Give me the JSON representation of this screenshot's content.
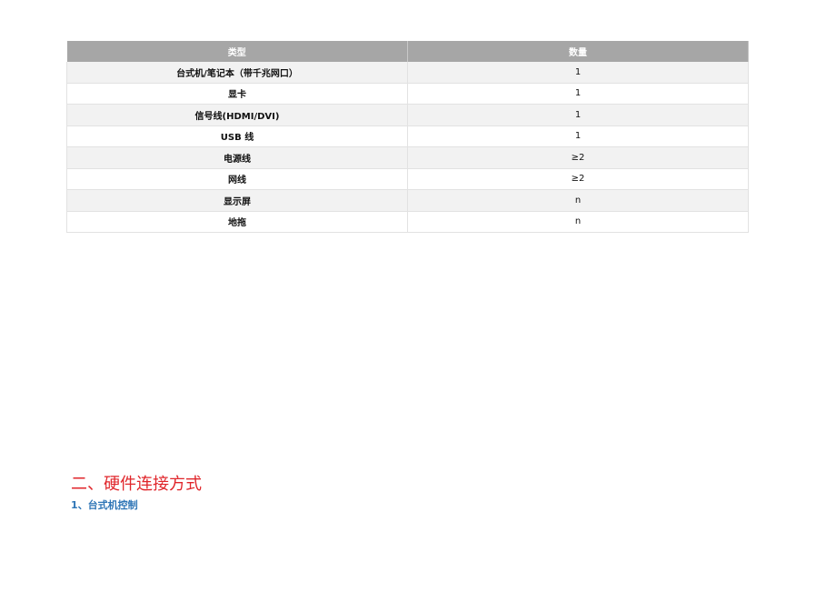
{
  "table": {
    "headers": [
      "类型",
      "数量"
    ],
    "rows": [
      [
        "台式机/笔记本（带千兆网口）",
        "1"
      ],
      [
        "显卡",
        "1"
      ],
      [
        "信号线(HDMI/DVI)",
        "1"
      ],
      [
        "USB 线",
        "1"
      ],
      [
        "电源线",
        "≥2"
      ],
      [
        "网线",
        "≥2"
      ],
      [
        "显示屏",
        "n"
      ],
      [
        "地拖",
        "n"
      ]
    ]
  },
  "section": {
    "heading": "二、硬件连接方式",
    "subheading": "1、台式机控制"
  },
  "colors": {
    "header_bg": "#a6a6a6",
    "heading": "#e0262b",
    "subheading": "#2e75b6"
  }
}
